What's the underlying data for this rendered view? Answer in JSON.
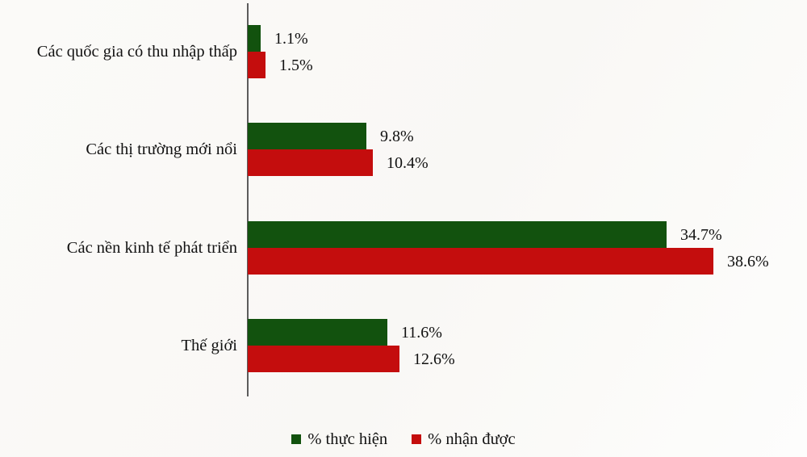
{
  "chart_data": {
    "type": "bar",
    "orientation": "horizontal",
    "title": "",
    "xlabel": "",
    "ylabel": "",
    "xlim": [
      0,
      46.4
    ],
    "grid": false,
    "legend_position": "bottom",
    "axis_color": "#5c5c5c",
    "background_color": "#faf9f7",
    "categories": [
      "Các quốc gia có thu nhập thấp",
      "Các thị trường mới nổi",
      "Các nền kinh tế phát triển",
      "Thế giới"
    ],
    "series": [
      {
        "name": "% thực hiện",
        "color": "#12520e",
        "values": [
          1.1,
          9.8,
          34.7,
          11.6
        ],
        "labels": [
          "1.1%",
          "9.8%",
          "34.7%",
          "11.6%"
        ]
      },
      {
        "name": "% nhận được",
        "color": "#c40d0d",
        "values": [
          1.5,
          10.4,
          38.6,
          12.6
        ],
        "labels": [
          "1.5%",
          "10.4%",
          "38.6%",
          "12.6%"
        ]
      }
    ]
  }
}
